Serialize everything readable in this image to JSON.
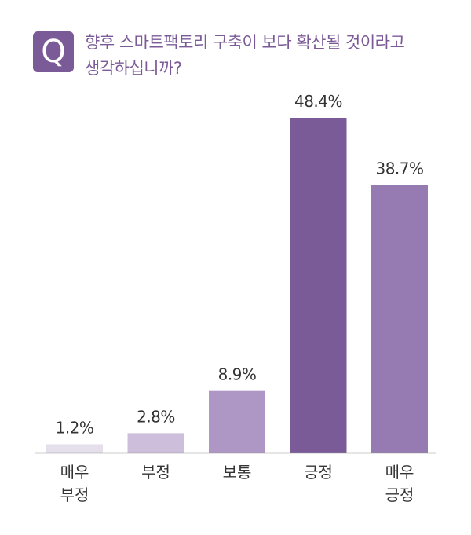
{
  "question": {
    "badge": "Q",
    "lines": [
      "향후 스마트팩토리 구축이 보다 확산될 것이라고",
      "생각하십니까?"
    ]
  },
  "chart_data": {
    "type": "bar",
    "title": "향후 스마트팩토리 구축이 보다 확산될 것이라고 생각하십니까?",
    "categories": [
      [
        "매우",
        "부정"
      ],
      [
        "부정"
      ],
      [
        "보통"
      ],
      [
        "긍정"
      ],
      [
        "매우",
        "긍정"
      ]
    ],
    "values": [
      1.2,
      2.8,
      8.9,
      48.4,
      38.7
    ],
    "labels": [
      "1.2%",
      "2.8%",
      "8.9%",
      "48.4%",
      "38.7%"
    ],
    "unit": "%",
    "ylim": [
      0,
      50
    ],
    "grid": false,
    "colors": [
      "#e5dfec",
      "#cdbfdc",
      "#ae96c5",
      "#7b5a98",
      "#967ab2"
    ],
    "baseline_color": "#9a9a9a",
    "text_color": "#333333"
  }
}
